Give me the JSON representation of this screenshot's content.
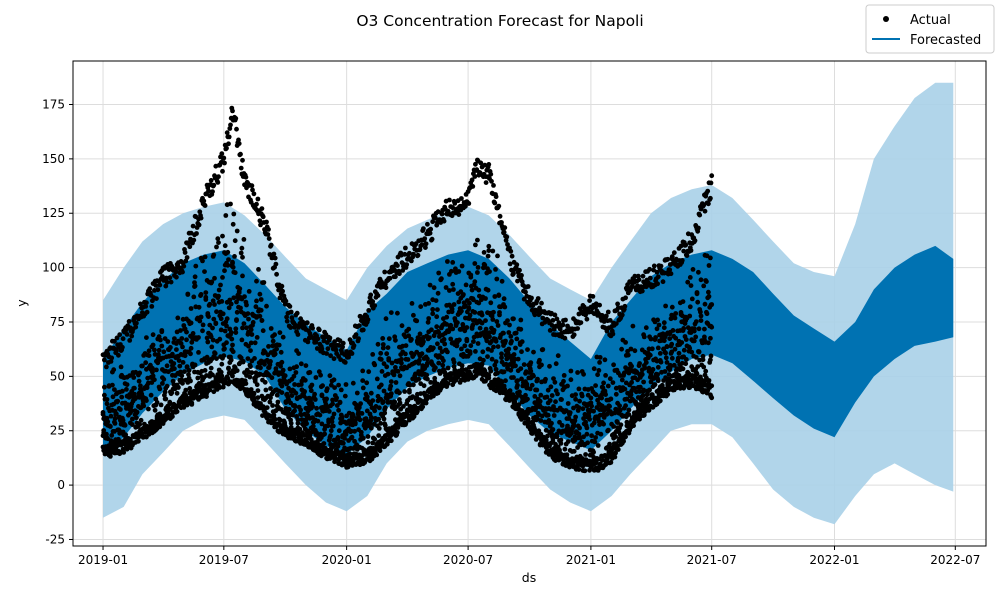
{
  "chart_data": {
    "type": "line",
    "title": "O3 Concentration Forecast for Napoli",
    "xlabel": "ds",
    "ylabel": "y",
    "x_ticks": [
      "2019-01",
      "2019-07",
      "2020-01",
      "2020-07",
      "2021-01",
      "2021-07",
      "2022-01",
      "2022-07"
    ],
    "y_ticks": [
      -25,
      0,
      25,
      50,
      75,
      100,
      125,
      150,
      175
    ],
    "ylim": [
      -28,
      195
    ],
    "xlim": [
      "2018-11-17",
      "2022-08-16"
    ],
    "grid": true,
    "legend_position": "top-right",
    "colors": {
      "forecast": "#0072B2",
      "interval": "#A8D0E8",
      "actual": "#000000"
    },
    "series": [
      {
        "name": "Actual",
        "style": "points",
        "color": "#000000",
        "x": [
          "2019-01-01",
          "2019-02-01",
          "2019-03-01",
          "2019-04-01",
          "2019-05-01",
          "2019-06-01",
          "2019-07-01",
          "2019-07-15",
          "2019-08-01",
          "2019-09-01",
          "2019-10-01",
          "2019-11-01",
          "2019-12-01",
          "2020-01-01",
          "2020-02-01",
          "2020-03-01",
          "2020-04-01",
          "2020-05-01",
          "2020-06-01",
          "2020-07-01",
          "2020-07-15",
          "2020-08-01",
          "2020-09-01",
          "2020-10-01",
          "2020-11-01",
          "2020-12-01",
          "2021-01-01",
          "2021-02-01",
          "2021-03-01",
          "2021-04-01",
          "2021-05-01",
          "2021-06-01",
          "2021-07-01"
        ],
        "y_low": [
          12,
          15,
          20,
          28,
          35,
          40,
          45,
          47,
          42,
          30,
          22,
          18,
          12,
          8,
          10,
          18,
          28,
          38,
          45,
          48,
          50,
          45,
          38,
          25,
          12,
          8,
          5,
          10,
          25,
          35,
          42,
          45,
          40
        ],
        "y_high": [
          62,
          72,
          85,
          100,
          108,
          135,
          155,
          177,
          145,
          125,
          85,
          75,
          70,
          65,
          85,
          100,
          110,
          120,
          133,
          135,
          151,
          148,
          110,
          90,
          80,
          75,
          88,
          78,
          95,
          100,
          105,
          118,
          143
        ]
      },
      {
        "name": "Forecasted",
        "style": "line",
        "color": "#0072B2",
        "x": [
          "2019-01-01",
          "2019-02-01",
          "2019-03-01",
          "2019-04-01",
          "2019-05-01",
          "2019-06-01",
          "2019-07-01",
          "2019-08-01",
          "2019-09-01",
          "2019-10-01",
          "2019-11-01",
          "2019-12-01",
          "2020-01-01",
          "2020-02-01",
          "2020-03-01",
          "2020-04-01",
          "2020-05-01",
          "2020-06-01",
          "2020-07-01",
          "2020-08-01",
          "2020-09-01",
          "2020-10-01",
          "2020-11-01",
          "2020-12-01",
          "2021-01-01",
          "2021-02-01",
          "2021-03-01",
          "2021-04-01",
          "2021-05-01",
          "2021-06-01",
          "2021-07-01",
          "2021-08-01",
          "2021-09-01",
          "2021-10-01",
          "2021-11-01",
          "2021-12-01",
          "2022-01-01",
          "2022-02-01",
          "2022-03-01",
          "2022-04-01",
          "2022-05-01",
          "2022-06-01",
          "2022-06-28"
        ],
        "y_low": [
          14,
          22,
          33,
          43,
          51,
          56,
          59,
          57,
          50,
          35,
          25,
          18,
          14,
          22,
          35,
          45,
          50,
          54,
          56,
          55,
          43,
          32,
          24,
          20,
          16,
          25,
          35,
          45,
          52,
          58,
          60,
          56,
          48,
          40,
          32,
          26,
          22,
          38,
          50,
          58,
          64,
          66,
          68
        ],
        "y_high": [
          58,
          72,
          84,
          94,
          102,
          106,
          108,
          102,
          92,
          82,
          74,
          68,
          62,
          80,
          88,
          98,
          102,
          106,
          108,
          104,
          95,
          84,
          74,
          66,
          58,
          75,
          85,
          96,
          102,
          106,
          108,
          104,
          98,
          88,
          78,
          72,
          66,
          75,
          90,
          100,
          106,
          110,
          104
        ],
        "interval_low": [
          -15,
          -10,
          5,
          15,
          25,
          30,
          32,
          30,
          20,
          10,
          0,
          -8,
          -12,
          -5,
          10,
          20,
          25,
          28,
          30,
          28,
          18,
          8,
          -2,
          -8,
          -12,
          -5,
          5,
          15,
          25,
          28,
          28,
          22,
          10,
          -2,
          -10,
          -15,
          -18,
          -5,
          5,
          10,
          5,
          0,
          -3
        ],
        "interval_high": [
          85,
          100,
          112,
          120,
          125,
          128,
          130,
          124,
          115,
          105,
          95,
          90,
          85,
          100,
          110,
          118,
          122,
          126,
          128,
          124,
          115,
          105,
          95,
          90,
          85,
          100,
          112,
          125,
          132,
          136,
          138,
          132,
          122,
          112,
          102,
          98,
          96,
          120,
          150,
          165,
          178,
          185,
          185
        ]
      }
    ]
  },
  "legend": {
    "items": [
      {
        "label": "Actual",
        "symbol": "dot"
      },
      {
        "label": "Forecasted",
        "symbol": "line"
      }
    ]
  }
}
